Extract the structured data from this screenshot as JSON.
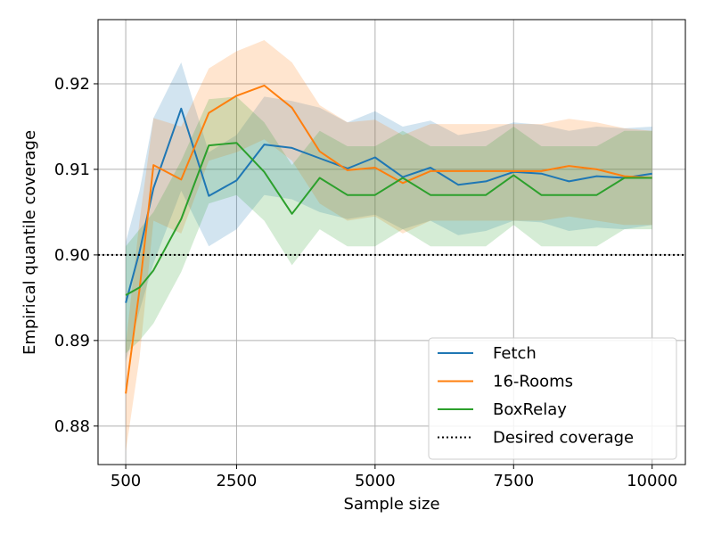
{
  "chart_data": {
    "type": "line",
    "title": "",
    "xlabel": "Sample size",
    "ylabel": "Empirical quantile coverage",
    "xlim": [
      0,
      10600
    ],
    "ylim": [
      0.8755,
      0.9275
    ],
    "x_ticks": [
      500,
      2500,
      5000,
      7500,
      10000
    ],
    "x_tick_labels": [
      "500",
      "2500",
      "5000",
      "7500",
      "10000"
    ],
    "y_ticks": [
      0.88,
      0.89,
      0.9,
      0.91,
      0.92
    ],
    "y_tick_labels": [
      "0.88",
      "0.89",
      "0.90",
      "0.91",
      "0.92"
    ],
    "grid": true,
    "legend_position": "lower-right",
    "x": [
      500,
      750,
      1000,
      1500,
      2000,
      2500,
      3000,
      3500,
      4000,
      4500,
      5000,
      5500,
      6000,
      6500,
      7000,
      7500,
      8000,
      8500,
      9000,
      9500,
      10000
    ],
    "series": [
      {
        "name": "Fetch",
        "color": "#1f77b4",
        "values": [
          0.8944,
          0.9004,
          0.9078,
          0.9171,
          0.9069,
          0.9087,
          0.9129,
          0.9125,
          0.9113,
          0.9101,
          0.9114,
          0.9091,
          0.9102,
          0.9082,
          0.9086,
          0.9097,
          0.9095,
          0.9086,
          0.9092,
          0.909,
          0.9095
        ],
        "lower": [
          0.8875,
          0.8935,
          0.899,
          0.9075,
          0.901,
          0.903,
          0.907,
          0.9065,
          0.905,
          0.9042,
          0.9047,
          0.903,
          0.904,
          0.9023,
          0.9028,
          0.904,
          0.9038,
          0.9028,
          0.9032,
          0.903,
          0.9035
        ],
        "upper": [
          0.9015,
          0.9075,
          0.916,
          0.9225,
          0.912,
          0.914,
          0.9185,
          0.918,
          0.9172,
          0.9155,
          0.9168,
          0.915,
          0.9157,
          0.914,
          0.9145,
          0.9155,
          0.9152,
          0.9145,
          0.915,
          0.9148,
          0.915
        ]
      },
      {
        "name": "16-Rooms",
        "color": "#ff7f0e",
        "values": [
          0.8838,
          0.896,
          0.9105,
          0.9088,
          0.9166,
          0.9186,
          0.9198,
          0.9172,
          0.9121,
          0.9099,
          0.9102,
          0.9084,
          0.9098,
          0.9098,
          0.9098,
          0.9098,
          0.9098,
          0.9104,
          0.91,
          0.9092,
          0.909
        ],
        "lower": [
          0.877,
          0.888,
          0.904,
          0.9025,
          0.911,
          0.912,
          0.9135,
          0.911,
          0.906,
          0.904,
          0.9045,
          0.9025,
          0.904,
          0.904,
          0.904,
          0.904,
          0.904,
          0.9045,
          0.904,
          0.9035,
          0.9035
        ],
        "upper": [
          0.8895,
          0.904,
          0.916,
          0.915,
          0.9218,
          0.9238,
          0.9251,
          0.9225,
          0.9175,
          0.9155,
          0.9158,
          0.914,
          0.9153,
          0.9153,
          0.9153,
          0.9153,
          0.9153,
          0.9159,
          0.9155,
          0.9148,
          0.9145
        ]
      },
      {
        "name": "BoxRelay",
        "color": "#2ca02c",
        "values": [
          0.8953,
          0.8962,
          0.8982,
          0.9042,
          0.9128,
          0.9131,
          0.9097,
          0.9048,
          0.909,
          0.907,
          0.907,
          0.909,
          0.907,
          0.907,
          0.907,
          0.9093,
          0.907,
          0.907,
          0.907,
          0.909,
          0.909
        ],
        "lower": [
          0.8885,
          0.89,
          0.892,
          0.898,
          0.906,
          0.907,
          0.904,
          0.8988,
          0.903,
          0.901,
          0.901,
          0.903,
          0.901,
          0.901,
          0.901,
          0.9035,
          0.901,
          0.901,
          0.901,
          0.903,
          0.903
        ],
        "upper": [
          0.901,
          0.903,
          0.905,
          0.911,
          0.9182,
          0.9185,
          0.9155,
          0.9105,
          0.9145,
          0.9127,
          0.9127,
          0.9145,
          0.9127,
          0.9127,
          0.9127,
          0.915,
          0.9127,
          0.9127,
          0.9127,
          0.9145,
          0.9145
        ]
      }
    ],
    "reference_lines": [
      {
        "name": "Desired coverage",
        "y": 0.9,
        "color": "#000000",
        "style": "dotted"
      }
    ]
  }
}
